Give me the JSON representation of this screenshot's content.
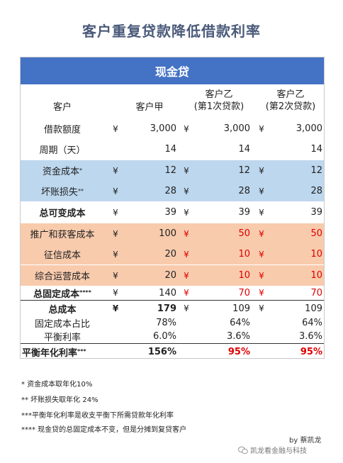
{
  "title": "客户重复贷款降低借款利率",
  "banner": "现金贷",
  "headers": {
    "label": "客户",
    "col1": "客户甲",
    "col2_line1": "客户乙",
    "col2_line2": "(第1次贷款)",
    "col3_line1": "客户乙",
    "col3_line2": "(第2次贷款)"
  },
  "currency_symbol": "¥",
  "rows": [
    {
      "label": "借款额度",
      "values": [
        "3,000",
        "3,000",
        "3,000"
      ],
      "yen": true
    },
    {
      "label": "周期（天）",
      "values": [
        "14",
        "14",
        "14"
      ],
      "yen": false
    },
    {
      "label": "资金成本",
      "mark": "*",
      "values": [
        "12",
        "12",
        "12"
      ],
      "yen": true
    },
    {
      "label": "坏账损失",
      "mark": "**",
      "values": [
        "28",
        "28",
        "28"
      ],
      "yen": true
    },
    {
      "label": "总可变成本",
      "values": [
        "39",
        "39",
        "39"
      ],
      "yen": true
    },
    {
      "label": "推广和获客成本",
      "values": [
        "100",
        "50",
        "50"
      ],
      "yen": true
    },
    {
      "label": "征信成本",
      "values": [
        "20",
        "10",
        "10"
      ],
      "yen": true
    },
    {
      "label": "综合运营成本",
      "values": [
        "20",
        "10",
        "10"
      ],
      "yen": true
    },
    {
      "label": "总固定成本",
      "mark": "****",
      "values": [
        "140",
        "70",
        "70"
      ],
      "yen": true
    },
    {
      "label": "总成本",
      "values": [
        "179",
        "109",
        "109"
      ],
      "yen": true
    },
    {
      "label": "固定成本占比",
      "values": [
        "78%",
        "64%",
        "64%"
      ],
      "yen": false
    },
    {
      "label": "平衡利率",
      "values": [
        "6.0%",
        "3.6%",
        "3.6%"
      ],
      "yen": false
    },
    {
      "label": "平衡年化利率",
      "mark": "***",
      "values": [
        "156%",
        "95%",
        "95%"
      ],
      "yen": false
    }
  ],
  "notes": [
    "* 资金成本取年化10%",
    "** 坏账损失取年化 24%",
    "***平衡年化利率是收支平衡下所需贷款年化利率",
    "**** 现金贷的总固定成本不变，但是分摊到复贷客户"
  ],
  "byline": "by 蔡凯龙",
  "watermark": "凯龙看金融与科技",
  "colors": {
    "banner": "#4472c4",
    "blue_band": "#bdd7ee",
    "orange_band": "#f8cbad",
    "highlight": "#e00000",
    "title": "#4a5a7a"
  }
}
